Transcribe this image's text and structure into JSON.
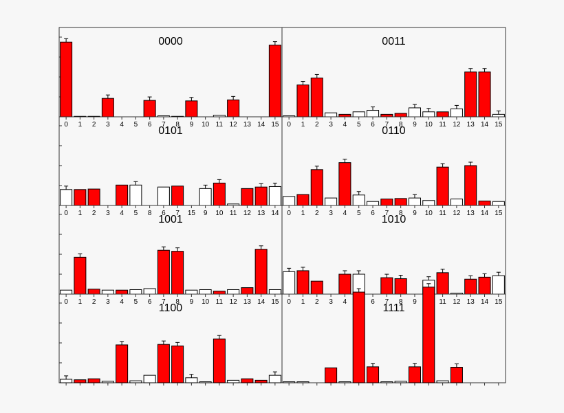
{
  "chart_data": {
    "type": "bar",
    "categories": [
      "0",
      "1",
      "2",
      "3",
      "4",
      "5",
      "6",
      "7",
      "8",
      "9",
      "10",
      "11",
      "12",
      "13",
      "14",
      "15"
    ],
    "ylim": [
      0,
      1
    ],
    "colors": {
      "highlighted": "#ff0000",
      "plain": "#ffffff",
      "outline": "#000000",
      "background": "#f7f7f7"
    },
    "panels": [
      {
        "title": "0000",
        "values": [
          0.75,
          0.005,
          0.005,
          0.185,
          0,
          0,
          0.165,
          0.01,
          0.005,
          0.16,
          0,
          0.015,
          0.17,
          0,
          0,
          0.72
        ],
        "highlighted": [
          true,
          false,
          false,
          true,
          false,
          false,
          true,
          false,
          false,
          true,
          false,
          false,
          true,
          false,
          false,
          true
        ],
        "has_error": [
          true,
          false,
          false,
          true,
          false,
          false,
          true,
          false,
          false,
          true,
          false,
          false,
          true,
          false,
          false,
          true
        ]
      },
      {
        "title": "0011",
        "values": [
          0.01,
          0.32,
          0.39,
          0.04,
          0.025,
          0.05,
          0.065,
          0.025,
          0.035,
          0.09,
          0.05,
          0.05,
          0.08,
          0.45,
          0.45,
          0.025
        ],
        "highlighted": [
          false,
          true,
          true,
          false,
          true,
          false,
          false,
          true,
          true,
          false,
          false,
          true,
          false,
          true,
          true,
          false
        ],
        "has_error": [
          false,
          true,
          true,
          false,
          false,
          false,
          true,
          false,
          false,
          true,
          true,
          false,
          true,
          true,
          true,
          true
        ]
      },
      {
        "title": "0101",
        "values": [
          0.16,
          0.16,
          0.165,
          0,
          0.205,
          0.205,
          0.185,
          0.195,
          0,
          0.17,
          0.225,
          0.015,
          0.17,
          0.185,
          0.19,
          0
        ],
        "highlighted": [
          false,
          true,
          true,
          false,
          true,
          false,
          false,
          true,
          true,
          false,
          true,
          false,
          true,
          true,
          false,
          false
        ],
        "has_error": [
          true,
          false,
          false,
          false,
          false,
          true,
          false,
          false,
          true,
          true,
          true,
          false,
          false,
          true,
          true,
          false
        ],
        "value_slots": [
          0,
          1,
          2,
          3,
          4,
          5,
          7,
          8,
          6,
          10,
          11,
          12,
          13,
          14,
          15,
          9
        ]
      },
      {
        "title": "0110",
        "values": [
          0.09,
          0.11,
          0.36,
          0.075,
          0.43,
          0.105,
          0.04,
          0.065,
          0.07,
          0.075,
          0.05,
          0.385,
          0.065,
          0.4,
          0.045,
          0.04
        ],
        "highlighted": [
          false,
          true,
          true,
          false,
          true,
          false,
          false,
          true,
          true,
          false,
          false,
          true,
          false,
          true,
          true,
          false
        ],
        "has_error": [
          false,
          false,
          true,
          false,
          true,
          true,
          false,
          false,
          false,
          true,
          false,
          true,
          false,
          true,
          false,
          false
        ]
      },
      {
        "title": "1001",
        "values": [
          0.04,
          0.37,
          0.05,
          0.04,
          0.04,
          0.045,
          0.055,
          0.44,
          0.43,
          0.04,
          0.045,
          0.03,
          0.045,
          0.065,
          0.45,
          0.045
        ],
        "highlighted": [
          false,
          true,
          true,
          false,
          true,
          false,
          false,
          true,
          true,
          false,
          false,
          true,
          false,
          true,
          true,
          false
        ],
        "has_error": [
          false,
          true,
          false,
          false,
          false,
          false,
          false,
          true,
          true,
          false,
          false,
          false,
          false,
          false,
          true,
          false
        ]
      },
      {
        "title": "1010",
        "values": [
          0.225,
          0.235,
          0.13,
          0,
          0.2,
          0.2,
          0,
          0.165,
          0.155,
          0,
          0.14,
          0.215,
          0.01,
          0.15,
          0.17,
          0.185
        ],
        "highlighted": [
          false,
          true,
          true,
          false,
          true,
          false,
          false,
          true,
          true,
          false,
          false,
          true,
          false,
          true,
          true,
          false
        ],
        "has_error": [
          true,
          true,
          false,
          false,
          true,
          true,
          false,
          true,
          true,
          false,
          true,
          true,
          false,
          true,
          true,
          true
        ]
      },
      {
        "title": "1100",
        "values": [
          0.035,
          0.03,
          0.04,
          0.015,
          0.38,
          0.02,
          0.075,
          0.385,
          0.37,
          0.05,
          0.01,
          0.44,
          0.025,
          0.04,
          0.025,
          0.075
        ],
        "highlighted": [
          false,
          true,
          true,
          false,
          true,
          false,
          false,
          true,
          true,
          false,
          false,
          true,
          false,
          true,
          true,
          false
        ],
        "has_error": [
          true,
          false,
          false,
          false,
          true,
          false,
          false,
          true,
          true,
          true,
          false,
          true,
          false,
          false,
          false,
          true
        ]
      },
      {
        "title": "1111",
        "values": [
          0.01,
          0.01,
          0.15,
          0.01,
          0.91,
          0.16,
          0.01,
          0.015,
          0.16,
          0.96,
          0.02,
          0.155,
          0,
          0,
          0,
          0
        ],
        "highlighted": [
          false,
          false,
          true,
          false,
          true,
          true,
          false,
          false,
          true,
          true,
          false,
          true,
          false,
          false,
          false,
          false
        ],
        "has_error": [
          false,
          false,
          false,
          false,
          true,
          true,
          false,
          false,
          true,
          true,
          false,
          true,
          false,
          false,
          false,
          false
        ],
        "value_slots": [
          0,
          1,
          3,
          4,
          5,
          6,
          7,
          8,
          9,
          10,
          11,
          12,
          2,
          13,
          14,
          15
        ]
      }
    ]
  }
}
